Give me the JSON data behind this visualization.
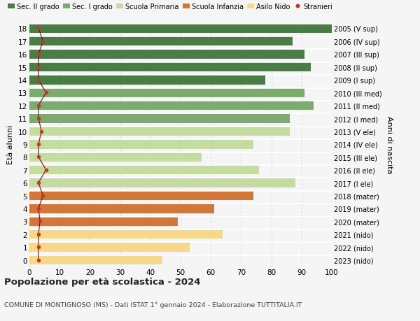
{
  "ages": [
    18,
    17,
    16,
    15,
    14,
    13,
    12,
    11,
    10,
    9,
    8,
    7,
    6,
    5,
    4,
    3,
    2,
    1,
    0
  ],
  "right_labels": [
    "2005 (V sup)",
    "2006 (IV sup)",
    "2007 (III sup)",
    "2008 (II sup)",
    "2009 (I sup)",
    "2010 (III med)",
    "2011 (II med)",
    "2012 (I med)",
    "2013 (V ele)",
    "2014 (IV ele)",
    "2015 (III ele)",
    "2016 (II ele)",
    "2017 (I ele)",
    "2018 (mater)",
    "2019 (mater)",
    "2020 (mater)",
    "2021 (nido)",
    "2022 (nido)",
    "2023 (nido)"
  ],
  "bar_values": [
    100,
    87,
    91,
    93,
    78,
    91,
    94,
    86,
    86,
    74,
    57,
    76,
    88,
    74,
    61,
    49,
    64,
    53,
    44
  ],
  "bar_colors": [
    "#4a7c47",
    "#4a7c47",
    "#4a7c47",
    "#4a7c47",
    "#4a7c47",
    "#7daa6e",
    "#7daa6e",
    "#7daa6e",
    "#c5dca0",
    "#c5dca0",
    "#c5dca0",
    "#c5dca0",
    "#c5dca0",
    "#d2773a",
    "#d2773a",
    "#d2773a",
    "#f5d88a",
    "#f5d88a",
    "#f5d88a"
  ],
  "stranieri_x": [
    3.0,
    4.5,
    3.0,
    3.0,
    3.0,
    5.5,
    3.0,
    3.0,
    4.0,
    3.0,
    3.0,
    5.5,
    3.0,
    4.5,
    3.0,
    3.5,
    3.0,
    3.0,
    3.0
  ],
  "legend_labels": [
    "Sec. II grado",
    "Sec. I grado",
    "Scuola Primaria",
    "Scuola Infanzia",
    "Asilo Nido",
    "Stranieri"
  ],
  "legend_colors": [
    "#4a7c47",
    "#7daa6e",
    "#c5dca0",
    "#d2773a",
    "#f5d88a",
    "#c0392b"
  ],
  "title": "Popolazione per età scolastica - 2024",
  "subtitle": "COMUNE DI MONTIGNOSO (MS) - Dati ISTAT 1° gennaio 2024 - Elaborazione TUTTITALIA.IT",
  "ylabel_left": "Età alunni",
  "ylabel_right": "Anni di nascita",
  "xlim": [
    0,
    100
  ],
  "xticks": [
    0,
    10,
    20,
    30,
    40,
    50,
    60,
    70,
    80,
    90,
    100
  ],
  "background_color": "#f5f5f5",
  "grid_color": "#cccccc",
  "bar_height": 0.72
}
